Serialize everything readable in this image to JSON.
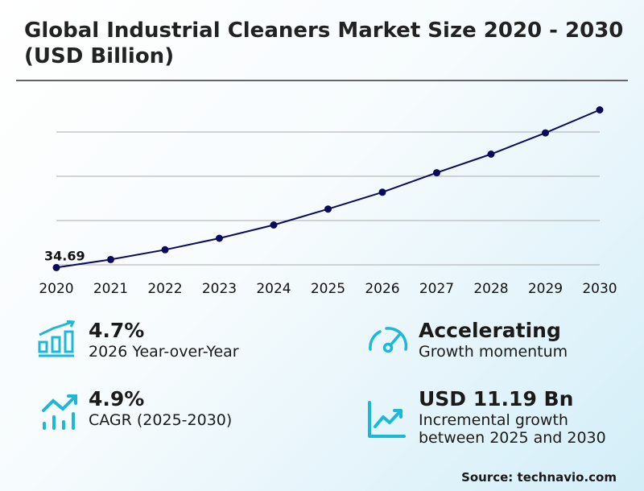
{
  "title": "Global Industrial Cleaners Market Size 2020 - 2030 (USD Billion)",
  "chart_data": {
    "type": "line",
    "title": "Global Industrial Cleaners Market Size 2020 - 2030 (USD Billion)",
    "categories": [
      "2020",
      "2021",
      "2022",
      "2023",
      "2024",
      "2025",
      "2026",
      "2027",
      "2028",
      "2029",
      "2030"
    ],
    "values": [
      34.69,
      35.6,
      36.7,
      38.0,
      39.5,
      41.3,
      43.2,
      45.4,
      47.5,
      49.9,
      52.5
    ],
    "data_labels": [
      {
        "category": "2020",
        "text": "34.69"
      }
    ],
    "gridlines": [
      35,
      40,
      45,
      50
    ],
    "grid": true,
    "ylim": [
      34,
      53
    ],
    "line_color": "#0b0b5e",
    "xlabel": "",
    "ylabel": ""
  },
  "stats": [
    {
      "value": "4.7%",
      "label": "2026 Year-over-Year",
      "icon": "bar-chart-growth-icon"
    },
    {
      "value": "Accelerating",
      "label": "Growth momentum",
      "icon": "speedometer-icon"
    },
    {
      "value": "4.9%",
      "label": "CAGR (2025-2030)",
      "icon": "trend-up-bars-icon"
    },
    {
      "value": "USD 11.19 Bn",
      "label": "Incremental growth between 2025 and 2030",
      "icon": "line-chart-up-icon"
    }
  ],
  "accent_color": "#1bb8d8",
  "source": "Source: technavio.com"
}
